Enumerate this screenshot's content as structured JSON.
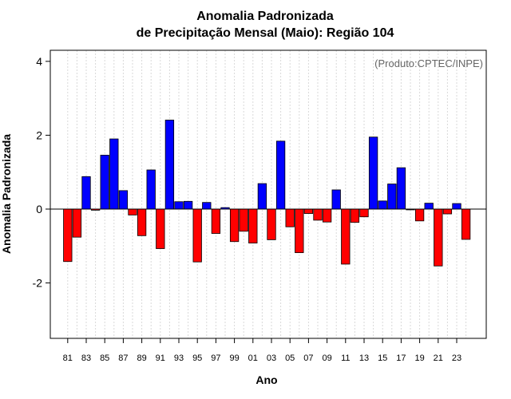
{
  "chart_data": {
    "type": "bar",
    "title": "Anomalia Padronizada",
    "subtitle": "de Precipitação Mensal (Maio): Região 104",
    "xlabel": "Ano",
    "ylabel": "Anomalia Padronizada",
    "annotation": "(Produto:CPTEC/INPE)",
    "ylim": [
      -3.5,
      4.3
    ],
    "yticks": [
      -2,
      0,
      2,
      4
    ],
    "ytick_labels": [
      "-2",
      "0",
      "2",
      "4"
    ],
    "categories": [
      "81",
      "82",
      "83",
      "84",
      "85",
      "86",
      "87",
      "88",
      "89",
      "90",
      "91",
      "92",
      "93",
      "94",
      "95",
      "96",
      "97",
      "98",
      "99",
      "00",
      "01",
      "02",
      "03",
      "04",
      "05",
      "06",
      "07",
      "08",
      "09",
      "10",
      "11",
      "12",
      "13",
      "14",
      "15",
      "16",
      "17",
      "18",
      "19",
      "20",
      "21",
      "22",
      "23",
      "24"
    ],
    "xtick_labels": [
      "81",
      "83",
      "85",
      "87",
      "89",
      "91",
      "93",
      "95",
      "97",
      "99",
      "01",
      "03",
      "05",
      "07",
      "09",
      "11",
      "13",
      "15",
      "17",
      "19",
      "21",
      "23"
    ],
    "values": [
      -1.42,
      -0.76,
      0.88,
      -0.03,
      1.46,
      1.9,
      0.5,
      -0.16,
      -0.72,
      1.06,
      -1.07,
      2.41,
      0.2,
      0.21,
      -1.43,
      0.18,
      -0.66,
      0.04,
      -0.88,
      -0.6,
      -0.92,
      0.69,
      -0.83,
      1.84,
      -0.48,
      -1.18,
      -0.12,
      -0.3,
      -0.35,
      0.52,
      -1.49,
      -0.36,
      -0.21,
      1.95,
      0.22,
      0.68,
      1.12,
      -0.02,
      -0.32,
      0.16,
      -1.54,
      -0.13,
      0.15,
      -0.82
    ],
    "positive_color": "#0000ff",
    "negative_color": "#ff0000",
    "grid": true
  }
}
